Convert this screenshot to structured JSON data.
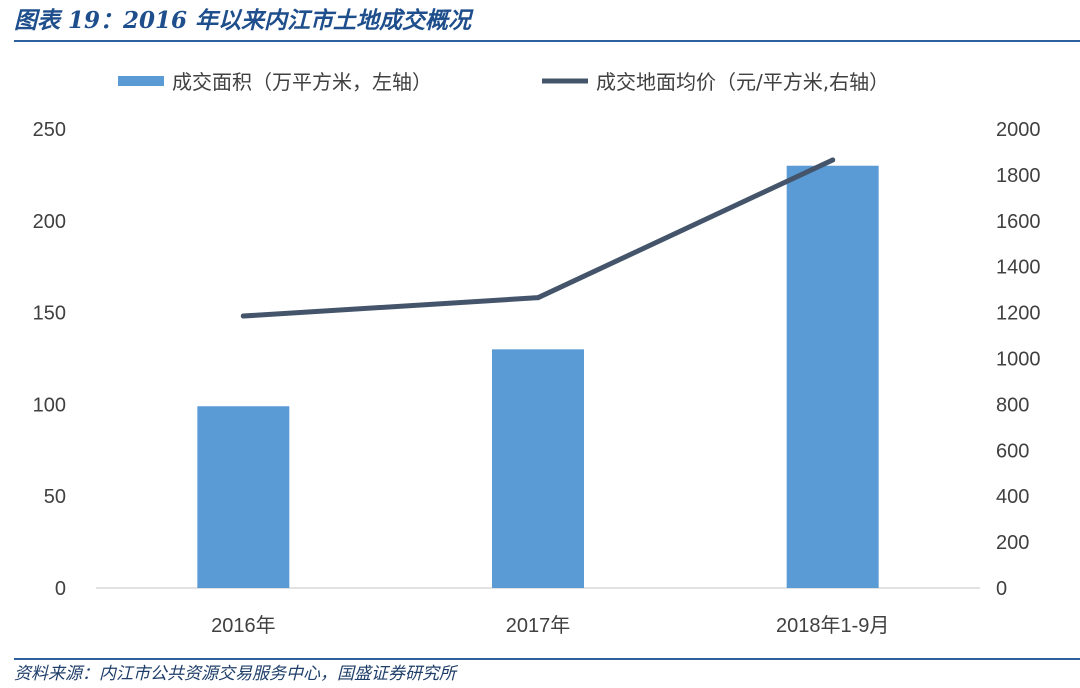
{
  "title": "图表 19：2016 年以来内江市土地成交概况",
  "source": "资料来源：内江市公共资源交易服务中心，国盛证券研究所",
  "colors": {
    "bar": "#5b9bd5",
    "line": "#44546a",
    "accent": "#2e5f9e",
    "axis": "#d9d9d9"
  },
  "chart_data": {
    "type": "bar",
    "categories": [
      "2016年",
      "2017年",
      "2018年1-9月"
    ],
    "series": [
      {
        "name": "成交面积（万平方米，左轴）",
        "type": "bar",
        "axis": "left",
        "values": [
          99,
          130,
          230
        ]
      },
      {
        "name": "成交地面均价（元/平方米,右轴）",
        "type": "line",
        "axis": "right",
        "values": [
          1185,
          1265,
          1865
        ]
      }
    ],
    "y_left": {
      "ylim": [
        0,
        250
      ],
      "ticks": [
        "0",
        "50",
        "100",
        "150",
        "200",
        "250"
      ]
    },
    "y_right": {
      "ylim": [
        0,
        2000
      ],
      "ticks": [
        "0",
        "200",
        "400",
        "600",
        "800",
        "1000",
        "1200",
        "1400",
        "1600",
        "1800",
        "2000"
      ]
    },
    "grid": false,
    "legend": "top"
  }
}
